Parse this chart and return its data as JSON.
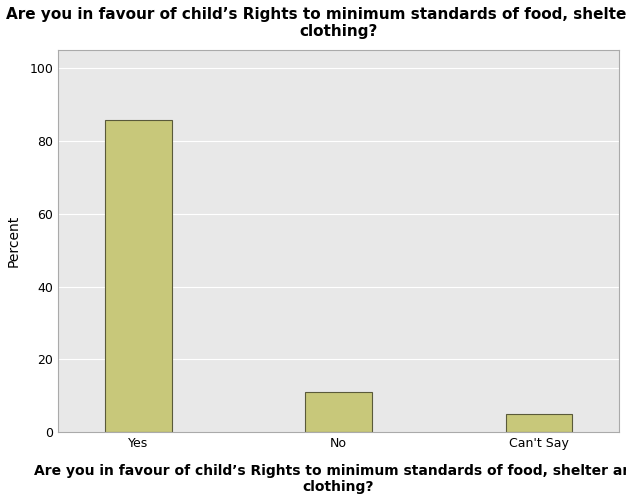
{
  "categories": [
    "Yes",
    "No",
    "Can't Say"
  ],
  "values": [
    85.7,
    10.9,
    4.9
  ],
  "bar_color": "#c8c87a",
  "bar_edgecolor": "#5a5a3a",
  "title": "Are you in favour of child’s Rights to minimum standards of food, shelter and\nclothing?",
  "xlabel": "Are you in favour of child’s Rights to minimum standards of food, shelter and\nclothing?",
  "ylabel": "Percent",
  "ylim": [
    0,
    105
  ],
  "yticks": [
    0,
    20,
    40,
    60,
    80,
    100
  ],
  "plot_bg_color": "#e8e8e8",
  "fig_bg_color": "#ffffff",
  "title_fontsize": 11,
  "xlabel_fontsize": 10,
  "ylabel_fontsize": 10,
  "tick_fontsize": 9,
  "bar_width": 0.5,
  "x_positions": [
    0.5,
    2.0,
    3.5
  ]
}
